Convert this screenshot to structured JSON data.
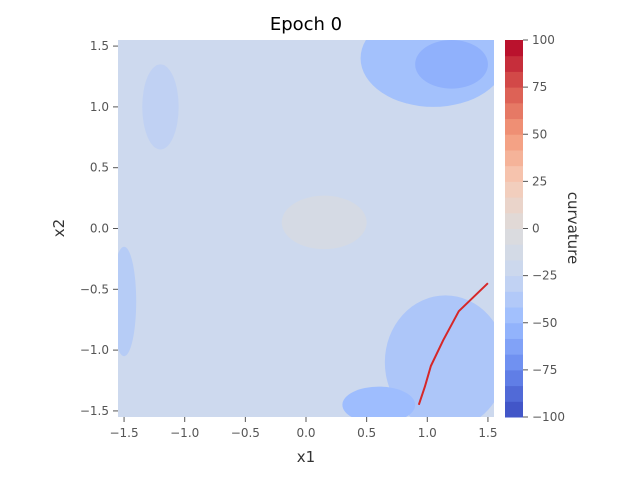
{
  "chart_data": {
    "type": "heatmap",
    "title": "Epoch 0",
    "xlabel": "x1",
    "ylabel": "x2",
    "colorbar_label": "curvature",
    "xlim": [
      -1.55,
      1.55
    ],
    "ylim": [
      -1.55,
      1.55
    ],
    "x_ticks": [
      -1.5,
      -1.0,
      -0.5,
      0.0,
      0.5,
      1.0,
      1.5
    ],
    "x_tick_labels": [
      "−1.5",
      "−1.0",
      "−0.5",
      "0.0",
      "0.5",
      "1.0",
      "1.5"
    ],
    "y_ticks": [
      -1.5,
      -1.0,
      -0.5,
      0.0,
      0.5,
      1.0,
      1.5
    ],
    "y_tick_labels": [
      "−1.5",
      "−1.0",
      "−0.5",
      "0.0",
      "0.5",
      "1.0",
      "1.5"
    ],
    "colorbar_range": [
      -100,
      100
    ],
    "colorbar_ticks": [
      -100,
      -75,
      -50,
      -25,
      0,
      25,
      50,
      75,
      100
    ],
    "colorbar_tick_labels": [
      "−100",
      "−75",
      "−50",
      "−25",
      "0",
      "25",
      "50",
      "75",
      "100"
    ],
    "colormap": "coolwarm",
    "colormap_stops": [
      "#3b4cc0",
      "#6788ee",
      "#9abbff",
      "#c9d7f0",
      "#dddcdc",
      "#f6cbb7",
      "#f49a7b",
      "#d8574f",
      "#b40426"
    ],
    "grid": false,
    "regions": [
      {
        "level": -45,
        "center": [
          1.05,
          1.4
        ],
        "radius": [
          0.6,
          0.4
        ]
      },
      {
        "level": -55,
        "center": [
          1.2,
          1.35
        ],
        "radius": [
          0.3,
          0.2
        ]
      },
      {
        "level": -40,
        "center": [
          1.15,
          -1.1
        ],
        "radius": [
          0.5,
          0.55
        ]
      },
      {
        "level": -48,
        "center": [
          0.6,
          -1.45
        ],
        "radius": [
          0.3,
          0.15
        ]
      },
      {
        "level": -35,
        "center": [
          -1.5,
          -0.6
        ],
        "radius": [
          0.1,
          0.45
        ]
      },
      {
        "level": -30,
        "center": [
          -1.2,
          1.0
        ],
        "radius": [
          0.15,
          0.35
        ]
      },
      {
        "level": -10,
        "center": [
          0.15,
          0.05
        ],
        "radius": [
          0.35,
          0.22
        ]
      }
    ],
    "trajectory": {
      "color": "#d62728",
      "x": [
        0.93,
        0.98,
        1.03,
        1.13,
        1.26,
        1.5
      ],
      "y": [
        -1.45,
        -1.3,
        -1.13,
        -0.92,
        -0.68,
        -0.45
      ]
    }
  }
}
